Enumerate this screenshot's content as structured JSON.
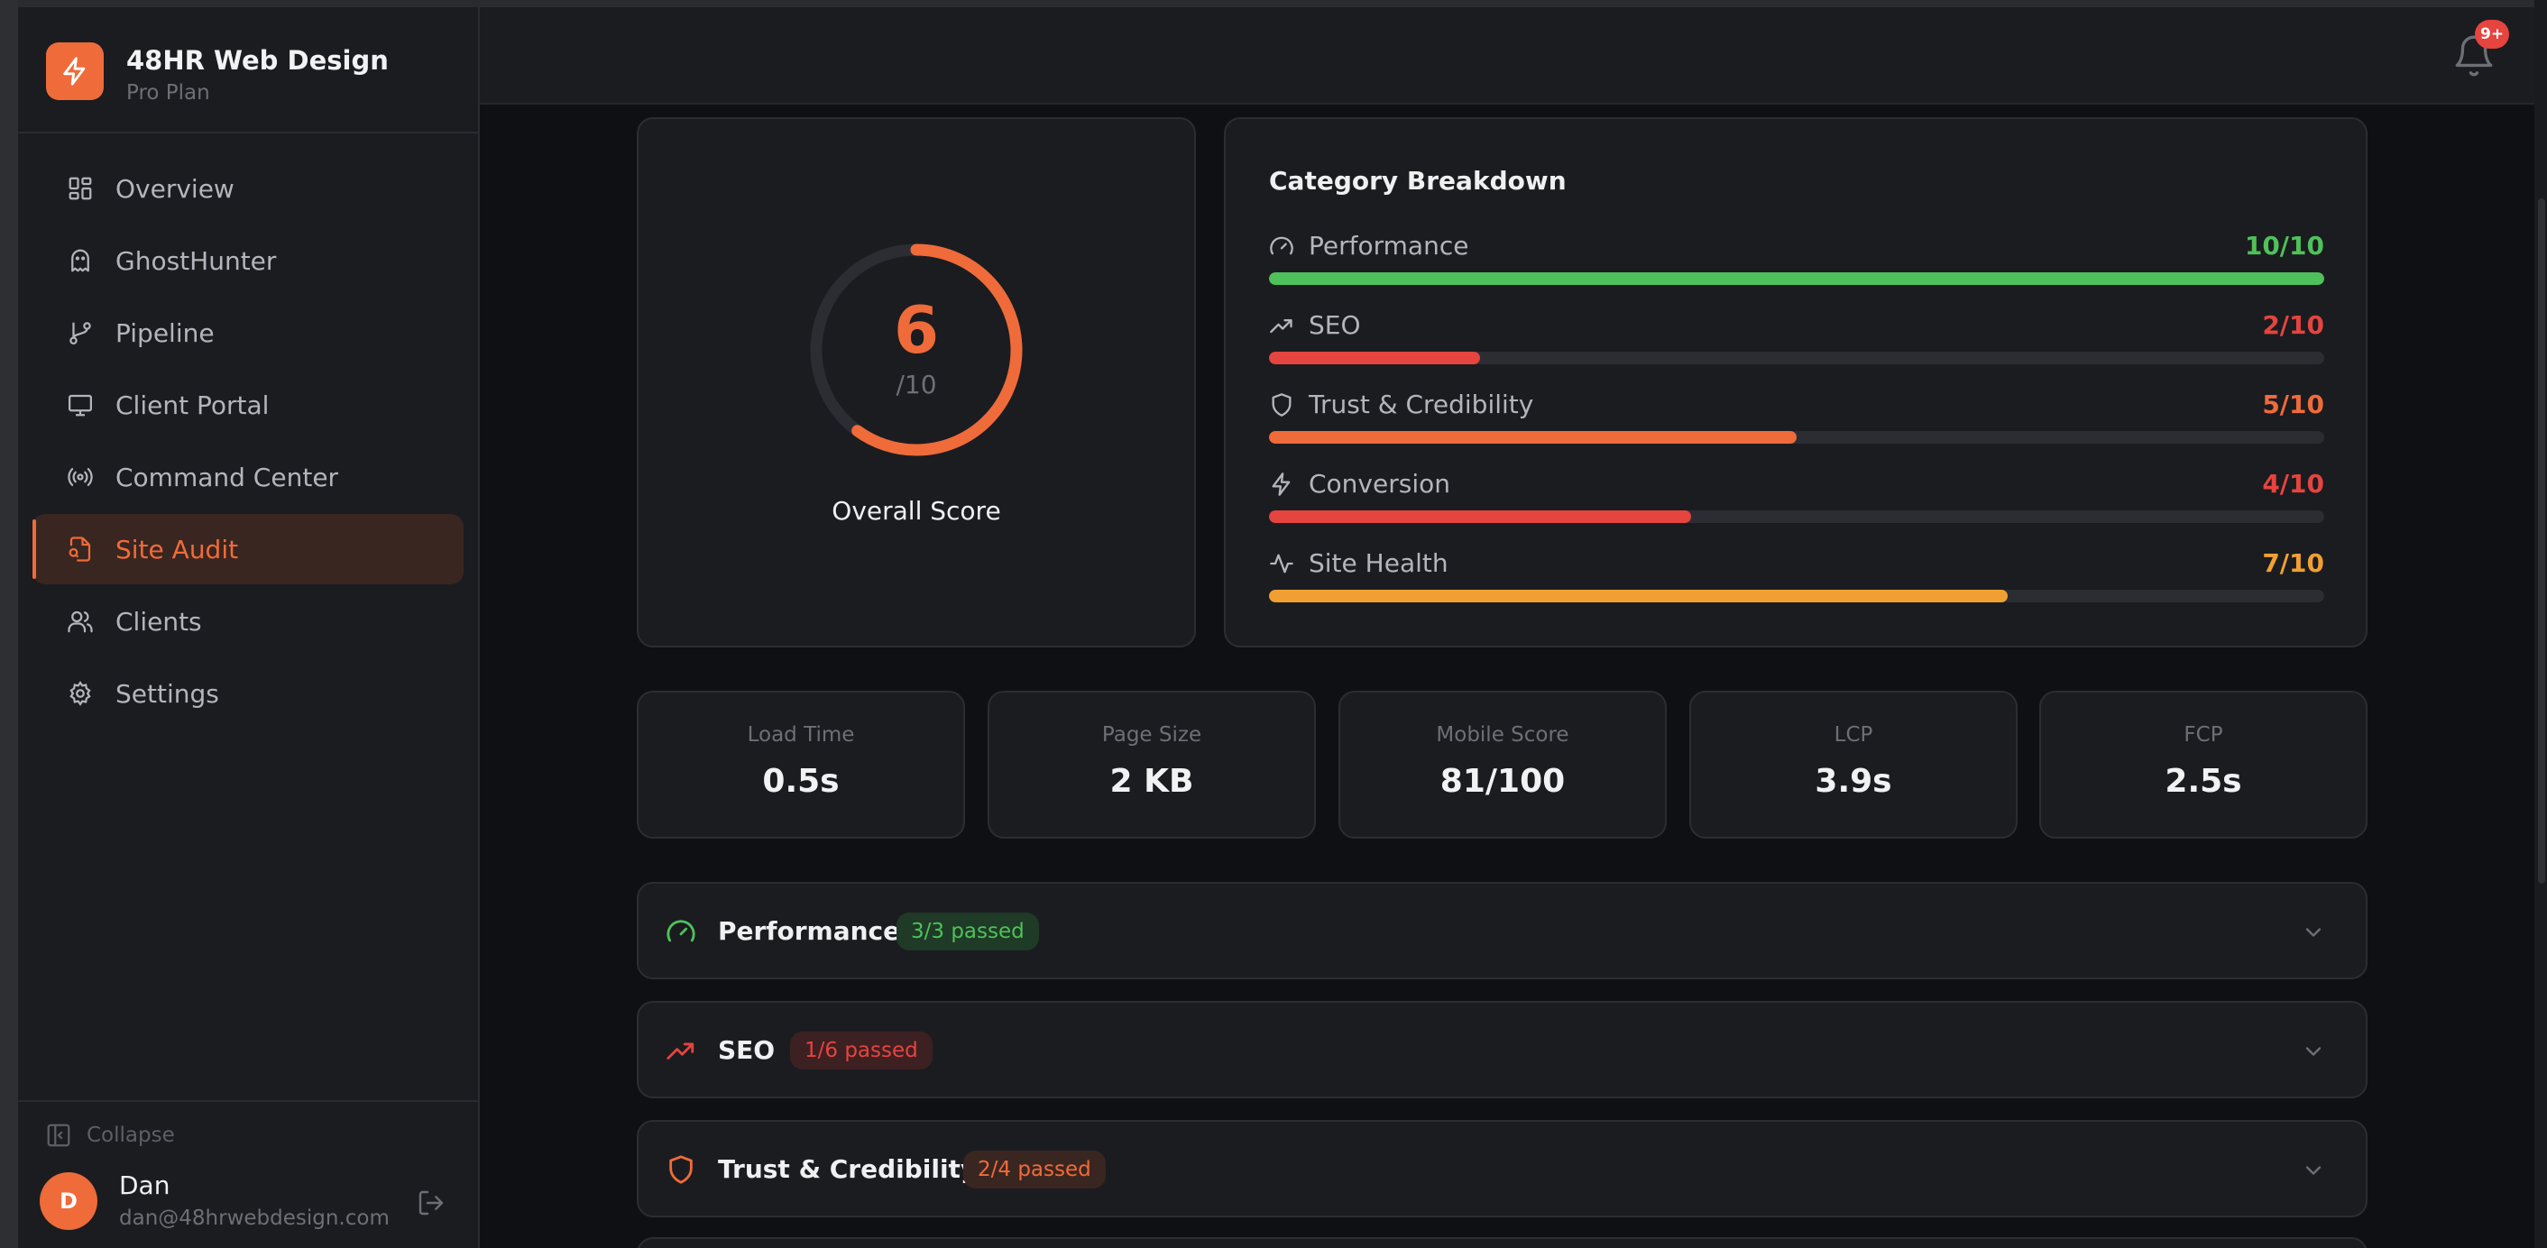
{
  "brand": {
    "name": "48HR Web Design",
    "plan": "Pro Plan"
  },
  "sidebar": {
    "items": [
      {
        "label": "Overview",
        "icon": "grid-icon"
      },
      {
        "label": "GhostHunter",
        "icon": "ghost-icon"
      },
      {
        "label": "Pipeline",
        "icon": "git-branch-icon"
      },
      {
        "label": "Client Portal",
        "icon": "monitor-icon"
      },
      {
        "label": "Command Center",
        "icon": "radio-icon"
      },
      {
        "label": "Site Audit",
        "icon": "file-search-icon",
        "active": true
      },
      {
        "label": "Clients",
        "icon": "users-icon"
      },
      {
        "label": "Settings",
        "icon": "gear-icon"
      }
    ],
    "collapse_label": "Collapse"
  },
  "user": {
    "initial": "D",
    "name": "Dan",
    "email": "dan@48hrwebdesign.com"
  },
  "notifications": {
    "badge": "9+"
  },
  "score": {
    "value": "6",
    "denominator": "/10",
    "label": "Overall Score",
    "fraction": 0.6
  },
  "categories": {
    "title": "Category Breakdown",
    "items": [
      {
        "label": "Performance",
        "value": "10/10",
        "fraction": 1.0,
        "color": "#4fc15a"
      },
      {
        "label": "SEO",
        "value": "2/10",
        "fraction": 0.2,
        "color": "#e5443f"
      },
      {
        "label": "Trust & Credibility",
        "value": "5/10",
        "fraction": 0.5,
        "color": "#ef6b3a"
      },
      {
        "label": "Conversion",
        "value": "4/10",
        "fraction": 0.4,
        "color": "#e5443f"
      },
      {
        "label": "Site Health",
        "value": "7/10",
        "fraction": 0.7,
        "color": "#f0a032"
      }
    ]
  },
  "metrics": [
    {
      "label": "Load Time",
      "value": "0.5s"
    },
    {
      "label": "Page Size",
      "value": "2 KB"
    },
    {
      "label": "Mobile Score",
      "value": "81/100"
    },
    {
      "label": "LCP",
      "value": "3.9s"
    },
    {
      "label": "FCP",
      "value": "2.5s"
    }
  ],
  "sections": [
    {
      "title": "Performance",
      "badge": "3/3 passed",
      "color": "#4fc15a",
      "badge_bg": "#1f3a26",
      "icon": "gauge-icon"
    },
    {
      "title": "SEO",
      "badge": "1/6 passed",
      "color": "#e5443f",
      "badge_bg": "#3d2022",
      "icon": "trending-up-icon"
    },
    {
      "title": "Trust & Credibility",
      "badge": "2/4 passed",
      "color": "#ef6b3a",
      "badge_bg": "#3a2620",
      "icon": "shield-icon"
    }
  ],
  "colors": {
    "accent": "#ef6b3a",
    "background": "#0f1013",
    "card": "#1b1c20"
  }
}
